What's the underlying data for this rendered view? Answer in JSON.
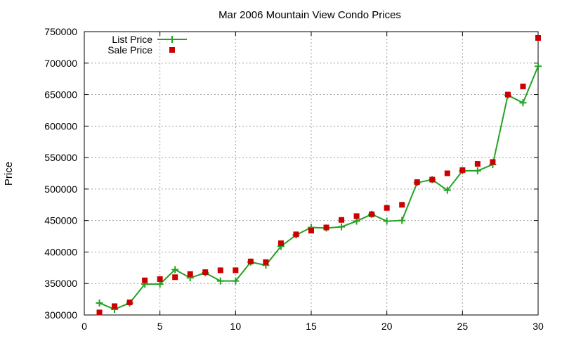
{
  "chart_data": {
    "type": "line",
    "title": "Mar 2006 Mountain View Condo Prices",
    "xlabel": "",
    "ylabel": "Price",
    "xlim": [
      0,
      30
    ],
    "ylim": [
      300000,
      750000
    ],
    "x_ticks": [
      0,
      5,
      10,
      15,
      20,
      25,
      30
    ],
    "y_ticks": [
      300000,
      350000,
      400000,
      450000,
      500000,
      550000,
      600000,
      650000,
      700000,
      750000
    ],
    "x_tick_labels": [
      "0",
      "5",
      "10",
      "15",
      "20",
      "25",
      "30"
    ],
    "y_tick_labels": [
      "300000",
      "350000",
      "400000",
      "450000",
      "500000",
      "550000",
      "600000",
      "650000",
      "700000",
      "750000"
    ],
    "grid": true,
    "legend_position": "top-left",
    "x": [
      1,
      2,
      3,
      4,
      5,
      6,
      7,
      8,
      9,
      10,
      11,
      12,
      13,
      14,
      15,
      16,
      17,
      18,
      19,
      20,
      21,
      22,
      23,
      24,
      25,
      26,
      27,
      28,
      29,
      30
    ],
    "series": [
      {
        "name": "List Price",
        "style": "line-plus",
        "color": "#22a322",
        "values": [
          319000,
          309000,
          319000,
          349000,
          349000,
          372000,
          359000,
          367000,
          354000,
          354000,
          384000,
          379000,
          409000,
          427000,
          439000,
          438000,
          440000,
          449000,
          460000,
          449000,
          450000,
          510000,
          515000,
          498000,
          529000,
          529000,
          539000,
          649000,
          637000,
          695000
        ]
      },
      {
        "name": "Sale Price",
        "style": "square-points",
        "color": "#cc0000",
        "values": [
          304000,
          314000,
          320000,
          355000,
          357000,
          360000,
          365000,
          368000,
          371000,
          371000,
          385000,
          384000,
          414000,
          428000,
          434000,
          439000,
          451000,
          457000,
          460000,
          470000,
          475000,
          511000,
          515000,
          525000,
          530000,
          540000,
          543000,
          650000,
          663000,
          740000
        ]
      }
    ]
  }
}
